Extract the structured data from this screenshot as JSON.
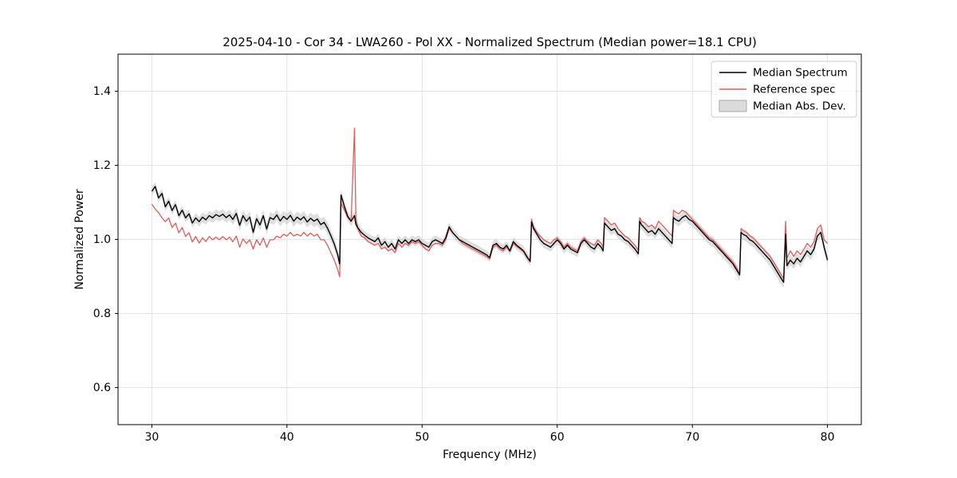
{
  "chart_data": {
    "type": "line",
    "title": "2025-04-10 - Cor 34 - LWA260 - Pol XX - Normalized Spectrum (Median power=18.1 CPU)",
    "xlabel": "Frequency (MHz)",
    "ylabel": "Normalized Power",
    "xlim": [
      27.5,
      82.5
    ],
    "ylim": [
      0.5,
      1.5
    ],
    "xticks": [
      30,
      40,
      50,
      60,
      70,
      80
    ],
    "yticks": [
      0.6,
      0.8,
      1.0,
      1.2,
      1.4
    ],
    "grid": true,
    "legend": {
      "position": "upper right",
      "entries": [
        {
          "label": "Median Spectrum",
          "type": "line",
          "color": "#000000"
        },
        {
          "label": "Reference spec",
          "type": "line",
          "color": "#e05c5c"
        },
        {
          "label": "Median Abs. Dev.",
          "type": "patch",
          "color": "#c8c8c8"
        }
      ]
    },
    "colors": {
      "median": "#000000",
      "reference": "#e05c5c",
      "band": "#c8c8c8"
    },
    "series_format": [
      "freq_mhz",
      "median",
      "reference",
      "abs_dev"
    ],
    "points": [
      [
        30.0,
        1.13,
        1.095,
        0.012
      ],
      [
        30.25,
        1.143,
        1.082,
        0.012
      ],
      [
        30.5,
        1.112,
        1.072,
        0.012
      ],
      [
        30.75,
        1.124,
        1.058,
        0.012
      ],
      [
        31.0,
        1.088,
        1.048,
        0.012
      ],
      [
        31.25,
        1.103,
        1.058,
        0.012
      ],
      [
        31.5,
        1.078,
        1.032,
        0.012
      ],
      [
        31.75,
        1.094,
        1.044,
        0.012
      ],
      [
        32.0,
        1.064,
        1.018,
        0.012
      ],
      [
        32.25,
        1.079,
        1.032,
        0.012
      ],
      [
        32.5,
        1.058,
        1.008,
        0.012
      ],
      [
        32.75,
        1.069,
        1.018,
        0.012
      ],
      [
        33.0,
        1.044,
        0.993,
        0.012
      ],
      [
        33.25,
        1.058,
        1.008,
        0.013
      ],
      [
        33.5,
        1.048,
        0.99,
        0.013
      ],
      [
        33.75,
        1.06,
        1.004,
        0.013
      ],
      [
        34.0,
        1.053,
        0.994,
        0.013
      ],
      [
        34.25,
        1.064,
        1.008,
        0.013
      ],
      [
        34.5,
        1.058,
        0.999,
        0.014
      ],
      [
        34.75,
        1.067,
        1.006,
        0.014
      ],
      [
        35.0,
        1.062,
        0.999,
        0.014
      ],
      [
        35.25,
        1.068,
        1.008,
        0.014
      ],
      [
        35.5,
        1.059,
        0.999,
        0.014
      ],
      [
        35.75,
        1.066,
        1.006,
        0.014
      ],
      [
        36.0,
        1.054,
        0.994,
        0.015
      ],
      [
        36.25,
        1.07,
        1.009,
        0.015
      ],
      [
        36.5,
        1.038,
        0.979,
        0.015
      ],
      [
        36.75,
        1.064,
        1.001,
        0.015
      ],
      [
        37.0,
        1.049,
        0.989,
        0.015
      ],
      [
        37.25,
        1.06,
        0.999,
        0.015
      ],
      [
        37.5,
        1.019,
        0.974,
        0.015
      ],
      [
        37.75,
        1.056,
        0.999,
        0.015
      ],
      [
        38.0,
        1.039,
        0.984,
        0.015
      ],
      [
        38.25,
        1.064,
        1.004,
        0.015
      ],
      [
        38.5,
        1.028,
        0.979,
        0.015
      ],
      [
        38.75,
        1.059,
        0.999,
        0.015
      ],
      [
        39.0,
        1.054,
        0.999,
        0.015
      ],
      [
        39.25,
        1.066,
        1.009,
        0.015
      ],
      [
        39.5,
        1.05,
        1.004,
        0.015
      ],
      [
        39.75,
        1.062,
        1.014,
        0.015
      ],
      [
        40.0,
        1.054,
        1.009,
        0.015
      ],
      [
        40.25,
        1.065,
        1.019,
        0.015
      ],
      [
        40.5,
        1.049,
        1.009,
        0.015
      ],
      [
        40.75,
        1.06,
        1.014,
        0.015
      ],
      [
        41.0,
        1.053,
        1.009,
        0.015
      ],
      [
        41.25,
        1.061,
        1.019,
        0.015
      ],
      [
        41.5,
        1.047,
        1.009,
        0.015
      ],
      [
        41.75,
        1.057,
        1.017,
        0.015
      ],
      [
        42.0,
        1.049,
        1.009,
        0.016
      ],
      [
        42.25,
        1.055,
        1.014,
        0.016
      ],
      [
        42.5,
        1.04,
        0.999,
        0.016
      ],
      [
        42.75,
        1.046,
        0.999,
        0.016
      ],
      [
        43.0,
        1.03,
        0.984,
        0.016
      ],
      [
        43.25,
        1.01,
        0.964,
        0.016
      ],
      [
        43.5,
        0.988,
        0.944,
        0.016
      ],
      [
        43.75,
        0.959,
        0.919,
        0.016
      ],
      [
        43.9,
        0.934,
        0.899,
        0.016
      ],
      [
        44.0,
        1.12,
        1.098,
        0.014
      ],
      [
        44.25,
        1.089,
        1.079,
        0.014
      ],
      [
        44.5,
        1.062,
        1.059,
        0.013
      ],
      [
        44.75,
        1.049,
        1.049,
        0.013
      ],
      [
        45.0,
        1.064,
        1.3,
        0.013
      ],
      [
        45.1,
        1.041,
        1.059,
        0.012
      ],
      [
        45.25,
        1.031,
        1.029,
        0.012
      ],
      [
        45.5,
        1.019,
        1.009,
        0.012
      ],
      [
        45.75,
        1.011,
        1.004,
        0.012
      ],
      [
        46.0,
        1.004,
        0.994,
        0.012
      ],
      [
        46.25,
        0.999,
        0.989,
        0.012
      ],
      [
        46.5,
        0.994,
        0.984,
        0.012
      ],
      [
        46.75,
        1.004,
        0.989,
        0.012
      ],
      [
        47.0,
        0.984,
        0.974,
        0.012
      ],
      [
        47.25,
        0.994,
        0.979,
        0.012
      ],
      [
        47.5,
        0.979,
        0.969,
        0.012
      ],
      [
        47.75,
        0.989,
        0.974,
        0.012
      ],
      [
        48.0,
        0.974,
        0.964,
        0.012
      ],
      [
        48.25,
        0.999,
        0.989,
        0.012
      ],
      [
        48.5,
        0.989,
        0.979,
        0.012
      ],
      [
        48.75,
        0.999,
        0.989,
        0.012
      ],
      [
        49.0,
        0.989,
        0.984,
        0.012
      ],
      [
        49.25,
        0.999,
        0.994,
        0.012
      ],
      [
        49.5,
        0.994,
        0.989,
        0.012
      ],
      [
        49.75,
        0.999,
        0.994,
        0.012
      ],
      [
        50.0,
        0.989,
        0.984,
        0.012
      ],
      [
        50.25,
        0.984,
        0.974,
        0.012
      ],
      [
        50.5,
        0.979,
        0.969,
        0.012
      ],
      [
        50.75,
        0.994,
        0.984,
        0.012
      ],
      [
        51.0,
        0.999,
        0.989,
        0.012
      ],
      [
        51.25,
        0.994,
        0.989,
        0.012
      ],
      [
        51.5,
        0.989,
        0.984,
        0.012
      ],
      [
        51.75,
        1.004,
        0.999,
        0.012
      ],
      [
        52.0,
        1.034,
        1.029,
        0.012
      ],
      [
        52.25,
        1.019,
        1.019,
        0.012
      ],
      [
        52.5,
        1.009,
        1.009,
        0.012
      ],
      [
        52.75,
        0.999,
        0.999,
        0.012
      ],
      [
        53.0,
        0.994,
        0.989,
        0.012
      ],
      [
        53.25,
        0.989,
        0.984,
        0.012
      ],
      [
        53.5,
        0.984,
        0.979,
        0.012
      ],
      [
        53.75,
        0.979,
        0.974,
        0.012
      ],
      [
        54.0,
        0.974,
        0.969,
        0.012
      ],
      [
        54.25,
        0.969,
        0.964,
        0.012
      ],
      [
        54.5,
        0.964,
        0.959,
        0.012
      ],
      [
        54.75,
        0.959,
        0.954,
        0.012
      ],
      [
        55.0,
        0.951,
        0.947,
        0.012
      ],
      [
        55.25,
        0.984,
        0.979,
        0.012
      ],
      [
        55.5,
        0.989,
        0.984,
        0.012
      ],
      [
        55.75,
        0.979,
        0.974,
        0.012
      ],
      [
        56.0,
        0.974,
        0.969,
        0.012
      ],
      [
        56.25,
        0.984,
        0.979,
        0.012
      ],
      [
        56.5,
        0.969,
        0.967,
        0.012
      ],
      [
        56.75,
        0.994,
        0.989,
        0.012
      ],
      [
        57.0,
        0.984,
        0.981,
        0.012
      ],
      [
        57.25,
        0.977,
        0.974,
        0.012
      ],
      [
        57.5,
        0.969,
        0.967,
        0.012
      ],
      [
        57.75,
        0.954,
        0.951,
        0.012
      ],
      [
        58.0,
        0.941,
        0.939,
        0.012
      ],
      [
        58.1,
        1.047,
        1.054,
        0.012
      ],
      [
        58.25,
        1.029,
        1.034,
        0.012
      ],
      [
        58.5,
        1.014,
        1.019,
        0.012
      ],
      [
        58.75,
        0.999,
        1.009,
        0.012
      ],
      [
        59.0,
        0.989,
        0.999,
        0.012
      ],
      [
        59.25,
        0.984,
        0.994,
        0.012
      ],
      [
        59.5,
        0.979,
        0.989,
        0.012
      ],
      [
        59.75,
        0.989,
        0.999,
        0.012
      ],
      [
        60.0,
        0.999,
        1.004,
        0.012
      ],
      [
        60.25,
        0.989,
        0.994,
        0.012
      ],
      [
        60.5,
        0.974,
        0.979,
        0.012
      ],
      [
        60.75,
        0.984,
        0.989,
        0.012
      ],
      [
        61.0,
        0.974,
        0.979,
        0.012
      ],
      [
        61.25,
        0.969,
        0.974,
        0.012
      ],
      [
        61.5,
        0.964,
        0.969,
        0.012
      ],
      [
        61.75,
        0.989,
        0.994,
        0.012
      ],
      [
        62.0,
        0.999,
        1.004,
        0.012
      ],
      [
        62.25,
        0.989,
        0.994,
        0.012
      ],
      [
        62.5,
        0.979,
        0.989,
        0.012
      ],
      [
        62.75,
        0.974,
        0.984,
        0.012
      ],
      [
        63.0,
        0.989,
        0.999,
        0.012
      ],
      [
        63.25,
        0.979,
        0.989,
        0.012
      ],
      [
        63.4,
        0.969,
        0.979,
        0.012
      ],
      [
        63.5,
        1.044,
        1.059,
        0.012
      ],
      [
        63.75,
        1.034,
        1.049,
        0.012
      ],
      [
        64.0,
        1.024,
        1.039,
        0.012
      ],
      [
        64.25,
        1.029,
        1.044,
        0.012
      ],
      [
        64.5,
        1.014,
        1.029,
        0.012
      ],
      [
        64.75,
        1.009,
        1.019,
        0.012
      ],
      [
        65.0,
        0.999,
        1.009,
        0.012
      ],
      [
        65.25,
        0.994,
        1.004,
        0.012
      ],
      [
        65.5,
        0.984,
        0.994,
        0.012
      ],
      [
        65.75,
        0.974,
        0.984,
        0.012
      ],
      [
        66.0,
        0.961,
        0.971,
        0.012
      ],
      [
        66.1,
        1.049,
        1.059,
        0.012
      ],
      [
        66.25,
        1.039,
        1.049,
        0.012
      ],
      [
        66.5,
        1.029,
        1.044,
        0.013
      ],
      [
        66.75,
        1.019,
        1.034,
        0.013
      ],
      [
        67.0,
        1.024,
        1.039,
        0.013
      ],
      [
        67.25,
        1.014,
        1.029,
        0.013
      ],
      [
        67.5,
        1.029,
        1.049,
        0.013
      ],
      [
        67.75,
        1.019,
        1.039,
        0.013
      ],
      [
        68.0,
        1.009,
        1.029,
        0.013
      ],
      [
        68.25,
        0.999,
        1.019,
        0.013
      ],
      [
        68.5,
        0.989,
        1.009,
        0.013
      ],
      [
        68.6,
        1.059,
        1.079,
        0.013
      ],
      [
        68.75,
        1.054,
        1.074,
        0.013
      ],
      [
        69.0,
        1.049,
        1.069,
        0.014
      ],
      [
        69.25,
        1.059,
        1.079,
        0.014
      ],
      [
        69.5,
        1.064,
        1.074,
        0.014
      ],
      [
        69.75,
        1.054,
        1.064,
        0.014
      ],
      [
        70.0,
        1.049,
        1.054,
        0.014
      ],
      [
        70.25,
        1.039,
        1.044,
        0.014
      ],
      [
        70.5,
        1.029,
        1.034,
        0.014
      ],
      [
        70.75,
        1.019,
        1.024,
        0.014
      ],
      [
        71.0,
        1.009,
        1.014,
        0.014
      ],
      [
        71.25,
        0.999,
        1.004,
        0.014
      ],
      [
        71.5,
        0.994,
        0.999,
        0.014
      ],
      [
        71.75,
        0.984,
        0.989,
        0.014
      ],
      [
        72.0,
        0.974,
        0.979,
        0.014
      ],
      [
        72.25,
        0.964,
        0.969,
        0.014
      ],
      [
        72.5,
        0.954,
        0.959,
        0.014
      ],
      [
        72.75,
        0.944,
        0.949,
        0.014
      ],
      [
        73.0,
        0.934,
        0.939,
        0.015
      ],
      [
        73.25,
        0.919,
        0.924,
        0.015
      ],
      [
        73.5,
        0.904,
        0.909,
        0.015
      ],
      [
        73.6,
        1.019,
        1.029,
        0.015
      ],
      [
        73.75,
        1.014,
        1.024,
        0.015
      ],
      [
        74.0,
        1.009,
        1.019,
        0.015
      ],
      [
        74.25,
        0.999,
        1.009,
        0.015
      ],
      [
        74.5,
        0.994,
        1.004,
        0.015
      ],
      [
        74.75,
        0.984,
        0.994,
        0.015
      ],
      [
        75.0,
        0.974,
        0.984,
        0.015
      ],
      [
        75.25,
        0.964,
        0.974,
        0.015
      ],
      [
        75.5,
        0.954,
        0.964,
        0.016
      ],
      [
        75.75,
        0.944,
        0.954,
        0.016
      ],
      [
        76.0,
        0.929,
        0.939,
        0.016
      ],
      [
        76.25,
        0.914,
        0.924,
        0.016
      ],
      [
        76.5,
        0.899,
        0.909,
        0.016
      ],
      [
        76.75,
        0.884,
        0.894,
        0.016
      ],
      [
        76.9,
        1.014,
        1.049,
        0.014
      ],
      [
        77.0,
        0.929,
        0.949,
        0.014
      ],
      [
        77.25,
        0.944,
        0.969,
        0.014
      ],
      [
        77.5,
        0.934,
        0.954,
        0.014
      ],
      [
        77.75,
        0.949,
        0.969,
        0.014
      ],
      [
        78.0,
        0.939,
        0.959,
        0.014
      ],
      [
        78.25,
        0.954,
        0.974,
        0.014
      ],
      [
        78.5,
        0.969,
        0.989,
        0.014
      ],
      [
        78.75,
        0.959,
        0.979,
        0.014
      ],
      [
        79.0,
        0.974,
        0.994,
        0.014
      ],
      [
        79.25,
        1.009,
        1.029,
        0.014
      ],
      [
        79.5,
        1.019,
        1.039,
        0.014
      ],
      [
        79.75,
        0.979,
        0.999,
        0.014
      ],
      [
        80.0,
        0.944,
        0.989,
        0.014
      ]
    ]
  }
}
